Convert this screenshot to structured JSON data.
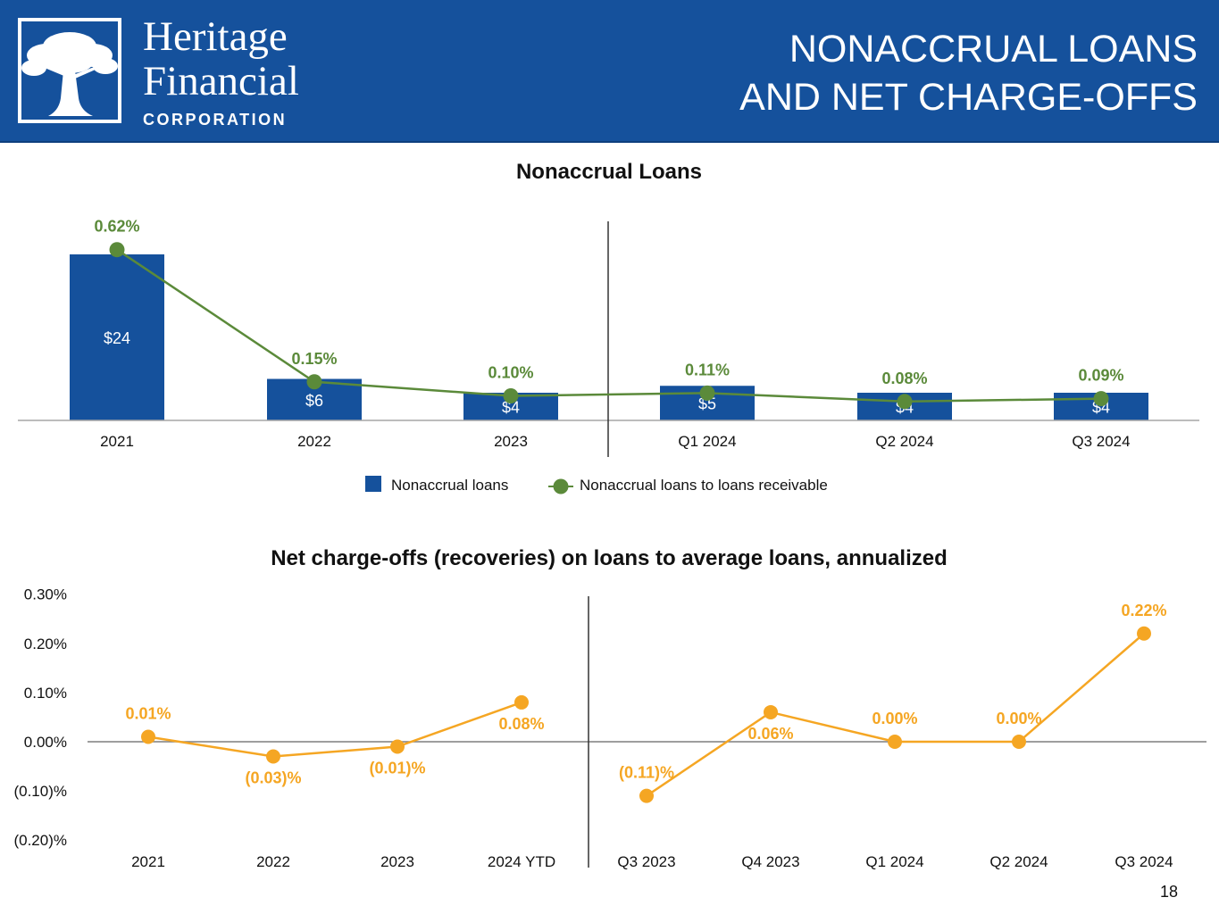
{
  "header": {
    "brand": {
      "line1": "Heritage",
      "line2": "Financial",
      "line3": "CORPORATION"
    },
    "logo_icon": "oak-tree-icon",
    "title_line1": "NONACCRUAL LOANS",
    "title_line2": "AND NET CHARGE-OFFS"
  },
  "colors": {
    "header_bg": "#15519c",
    "bar": "#15519c",
    "line_green": "#5b8a3a",
    "line_orange": "#f5a623"
  },
  "chart_data": [
    {
      "type": "bar",
      "title": "Nonaccrual Loans",
      "categories": [
        "2021",
        "2022",
        "2023",
        "Q1 2024",
        "Q2 2024",
        "Q3 2024"
      ],
      "series": [
        {
          "name": "Nonaccrual loans",
          "type": "bar",
          "values": [
            24,
            6,
            4,
            5,
            4,
            4
          ],
          "labels": [
            "$24",
            "$6",
            "$4",
            "$5",
            "$4",
            "$4"
          ]
        },
        {
          "name": "Nonaccrual loans to loans receivable",
          "type": "line",
          "values": [
            0.62,
            0.15,
            0.1,
            0.11,
            0.08,
            0.09
          ],
          "labels": [
            "0.62%",
            "0.15%",
            "0.10%",
            "0.11%",
            "0.08%",
            "0.09%"
          ]
        }
      ],
      "legend": [
        "Nonaccrual loans",
        "Nonaccrual loans to loans receivable"
      ],
      "legend_position": "bottom",
      "divider_after_index": 2
    },
    {
      "type": "line",
      "title": "Net charge-offs (recoveries) on loans to average loans, annualized",
      "categories": [
        "2021",
        "2022",
        "2023",
        "2024 YTD",
        "Q3 2023",
        "Q4 2023",
        "Q1 2024",
        "Q2 2024",
        "Q3 2024"
      ],
      "values": [
        0.01,
        -0.03,
        -0.01,
        0.08,
        -0.11,
        0.06,
        0.0,
        0.0,
        0.22
      ],
      "labels": [
        "0.01%",
        "(0.03)%",
        "(0.01)%",
        "0.08%",
        "(0.11)%",
        "0.06%",
        "0.00%",
        "0.00%",
        "0.22%"
      ],
      "label_side": [
        "above",
        "below",
        "below",
        "below",
        "above",
        "below",
        "above",
        "above",
        "above"
      ],
      "ylim": [
        -0.2,
        0.3
      ],
      "yticks": [
        0.3,
        0.2,
        0.1,
        0.0,
        -0.1,
        -0.2
      ],
      "ytick_labels": [
        "0.30%",
        "0.20%",
        "0.10%",
        "0.00%",
        "(0.10)%",
        "(0.20)%"
      ],
      "divider_after_index": 3
    }
  ],
  "page_number": "18"
}
